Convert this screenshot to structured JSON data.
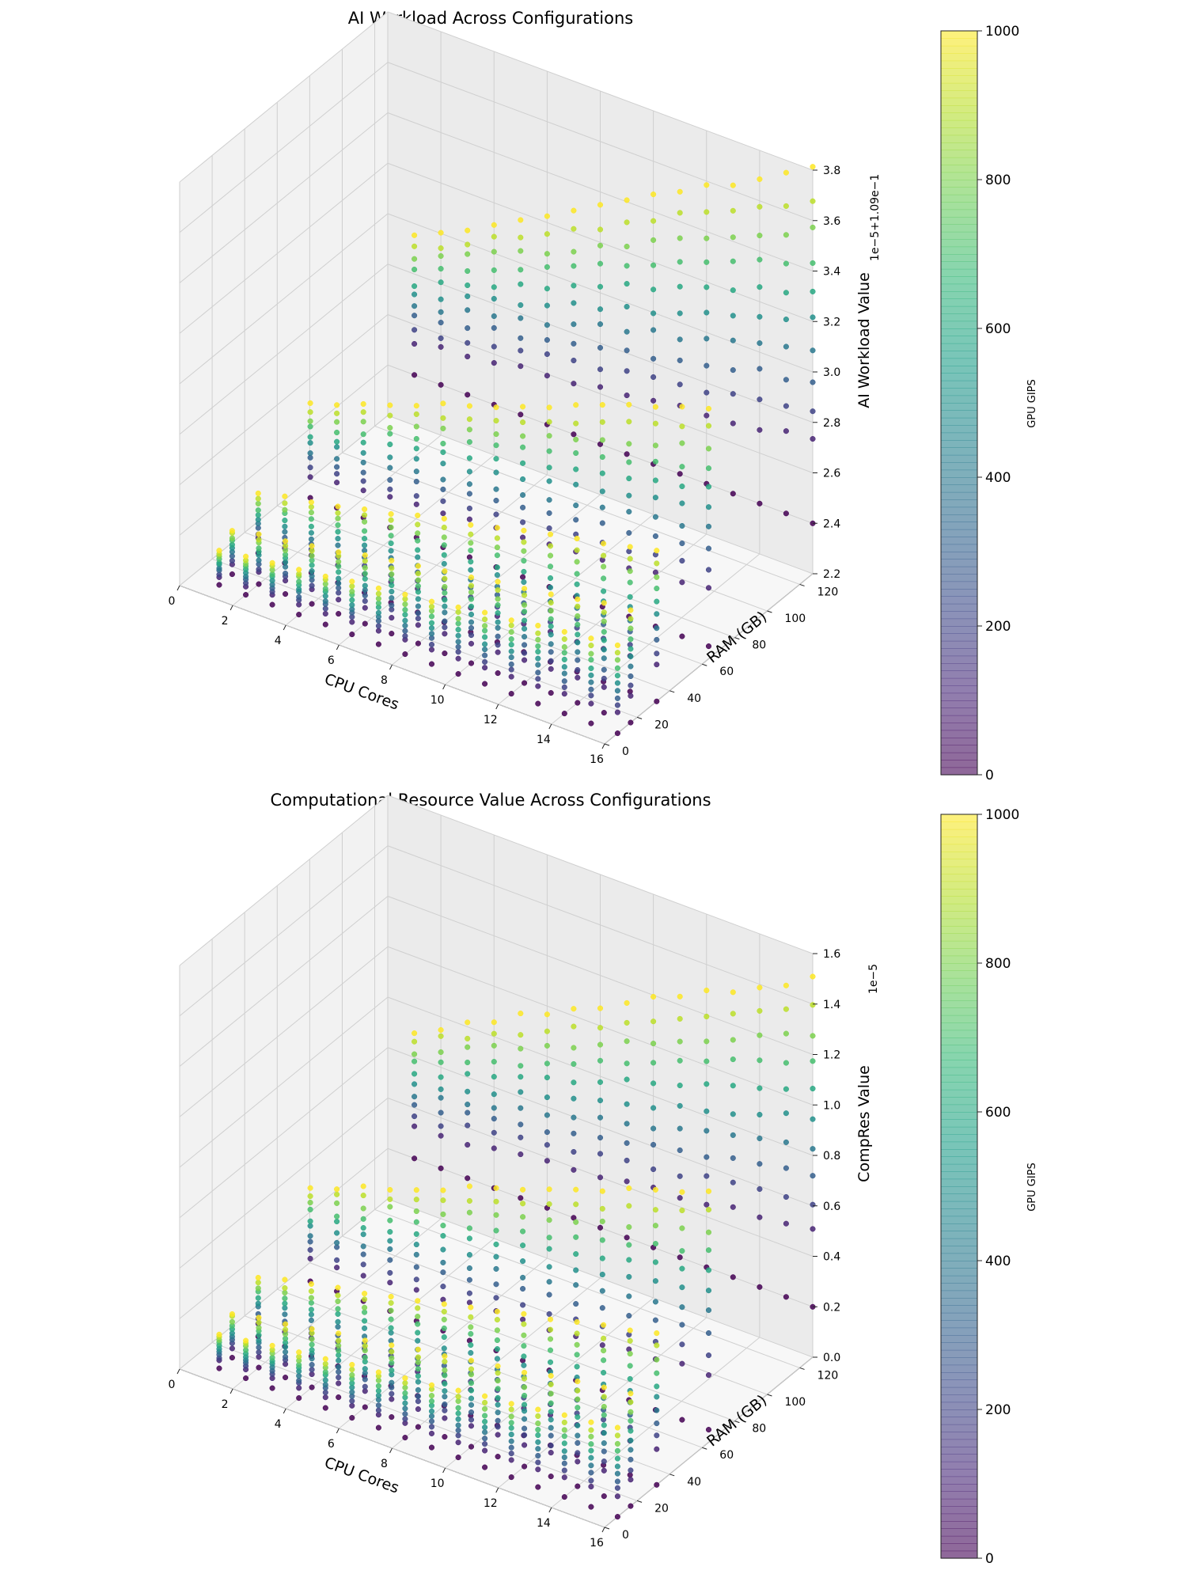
{
  "chart_data": [
    {
      "type": "scatter",
      "projection": "3d",
      "title": "AI Workload Across Configurations",
      "xlabel": "CPU Cores",
      "ylabel": "RAM (GB)",
      "zlabel": "AI Workload Value",
      "z_offset_label": "1e−5+1.09e−1",
      "xlim": [
        0,
        16
      ],
      "ylim": [
        0,
        128
      ],
      "zlim": [
        2.2,
        3.8
      ],
      "xticks": [
        "0",
        "2",
        "4",
        "6",
        "8",
        "10",
        "12",
        "14",
        "16"
      ],
      "yticks": [
        "0",
        "20",
        "40",
        "60",
        "80",
        "100",
        "120"
      ],
      "zticks": [
        "2.2",
        "2.4",
        "2.6",
        "2.8",
        "3.0",
        "3.2",
        "3.4",
        "3.6",
        "3.8"
      ],
      "cpu_values": [
        1,
        2,
        3,
        4,
        5,
        6,
        7,
        8,
        9,
        10,
        11,
        12,
        13,
        14,
        15,
        16
      ],
      "ram_values": [
        8,
        16,
        32,
        64,
        128
      ],
      "gpu_samples": [
        0,
        100,
        200,
        300,
        400,
        500,
        600,
        700,
        800,
        900,
        1000
      ],
      "z_range_by_ram": {
        "8": [
          2.2,
          2.55
        ],
        "16": [
          2.2,
          2.65
        ],
        "32": [
          2.2,
          2.8
        ],
        "64": [
          2.25,
          3.2
        ],
        "128": [
          2.4,
          3.8
        ]
      },
      "colorbar": {
        "label": "GPU GIPS",
        "range": [
          0,
          1000
        ],
        "ticks": [
          "0",
          "200",
          "400",
          "600",
          "800",
          "1000"
        ],
        "colormap": "viridis"
      }
    },
    {
      "type": "scatter",
      "projection": "3d",
      "title": "Computational Resource Value Across Configurations",
      "xlabel": "CPU Cores",
      "ylabel": "RAM (GB)",
      "zlabel": "CompRes Value",
      "z_offset_label": "1e−5",
      "xlim": [
        0,
        16
      ],
      "ylim": [
        0,
        128
      ],
      "zlim": [
        0.0,
        1.6
      ],
      "xticks": [
        "0",
        "2",
        "4",
        "6",
        "8",
        "10",
        "12",
        "14",
        "16"
      ],
      "yticks": [
        "0",
        "20",
        "40",
        "60",
        "80",
        "100",
        "120"
      ],
      "zticks": [
        "0.0",
        "0.2",
        "0.4",
        "0.6",
        "0.8",
        "1.0",
        "1.2",
        "1.4",
        "1.6"
      ],
      "cpu_values": [
        1,
        2,
        3,
        4,
        5,
        6,
        7,
        8,
        9,
        10,
        11,
        12,
        13,
        14,
        15,
        16
      ],
      "ram_values": [
        8,
        16,
        32,
        64,
        128
      ],
      "gpu_samples": [
        0,
        100,
        200,
        300,
        400,
        500,
        600,
        700,
        800,
        900,
        1000
      ],
      "z_range_by_ram": {
        "8": [
          0.0,
          0.35
        ],
        "16": [
          0.0,
          0.45
        ],
        "32": [
          0.0,
          0.6
        ],
        "64": [
          0.05,
          1.0
        ],
        "128": [
          0.2,
          1.5
        ]
      },
      "colorbar": {
        "label": "GPU GIPS",
        "range": [
          0,
          1000
        ],
        "ticks": [
          "0",
          "200",
          "400",
          "600",
          "800",
          "1000"
        ],
        "colormap": "viridis"
      }
    }
  ]
}
